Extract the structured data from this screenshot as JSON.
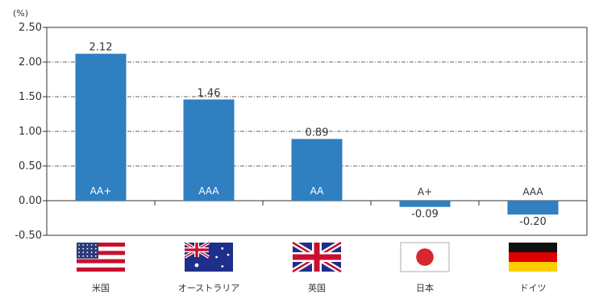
{
  "chart_data": {
    "type": "bar",
    "y_unit": "(%)",
    "categories": [
      "米国",
      "オーストラリア",
      "英国",
      "日本",
      "ドイツ"
    ],
    "values": [
      2.12,
      1.46,
      0.89,
      -0.09,
      -0.2
    ],
    "value_labels": [
      "2.12",
      "1.46",
      "0.89",
      "-0.09",
      "-0.20"
    ],
    "ratings": [
      "AA+",
      "AAA",
      "AA",
      "A+",
      "AAA"
    ],
    "flags": [
      "us-flag",
      "australia-flag",
      "uk-flag",
      "japan-flag",
      "germany-flag"
    ],
    "ylim": [
      -0.5,
      2.5
    ],
    "yticks": [
      "2.50",
      "2.00",
      "1.50",
      "1.00",
      "0.50",
      "0.00",
      "-0.50"
    ],
    "ytick_values": [
      2.5,
      2.0,
      1.5,
      1.0,
      0.5,
      0.0,
      -0.5
    ],
    "grid": "dashed horizontal",
    "bar_color": "#2f7fc1"
  }
}
